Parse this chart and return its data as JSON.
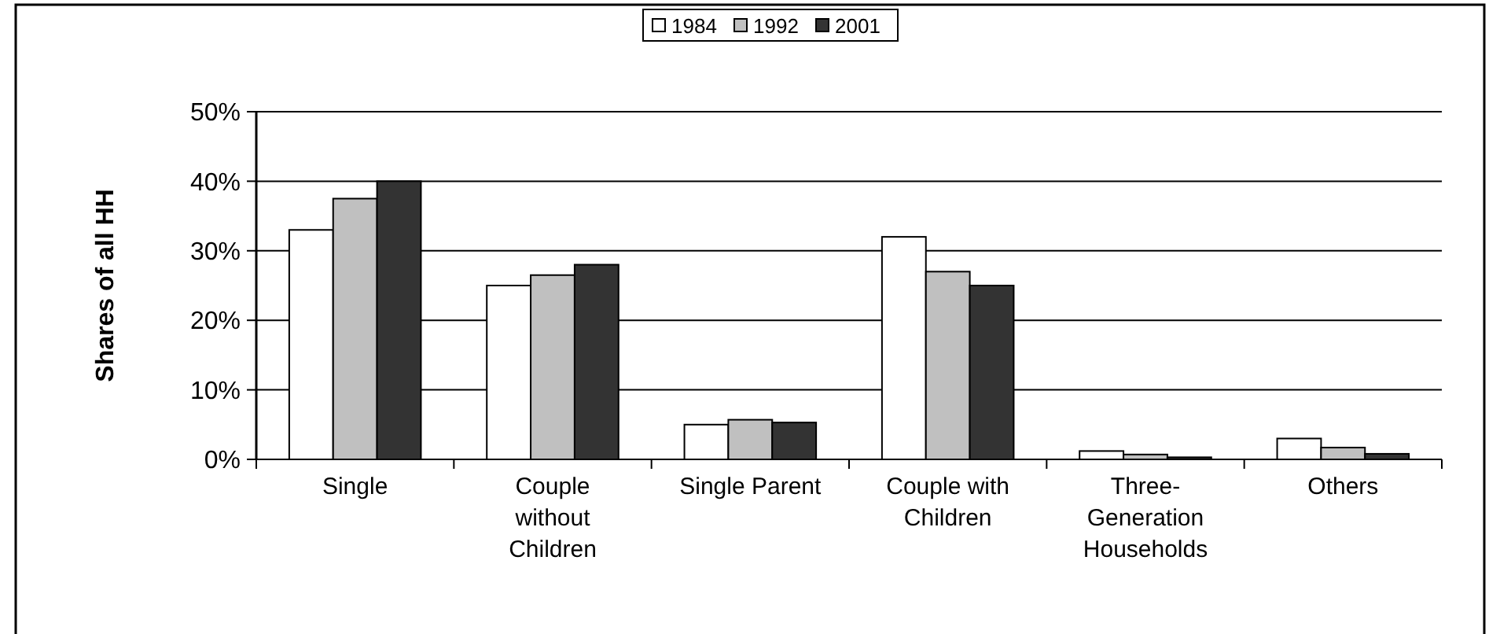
{
  "chart_data": {
    "type": "bar",
    "ylabel": "Shares of all HH",
    "categories": [
      "Single",
      "Couple without Children",
      "Single Parent",
      "Couple with Children",
      "Three-Generation Households",
      "Others"
    ],
    "series": [
      {
        "name": "1984",
        "color": "#ffffff",
        "values": [
          33,
          25,
          5,
          32,
          1.2,
          3
        ]
      },
      {
        "name": "1992",
        "color": "#c0c0c0",
        "values": [
          37.5,
          26.5,
          5.7,
          27,
          0.7,
          1.7
        ]
      },
      {
        "name": "2001",
        "color": "#333333",
        "values": [
          40,
          28,
          5.3,
          25,
          0.3,
          0.8
        ]
      }
    ],
    "ylim": [
      0,
      50
    ],
    "yticks": [
      {
        "value": 0,
        "label": "0%"
      },
      {
        "value": 10,
        "label": "10%"
      },
      {
        "value": 20,
        "label": "20%"
      },
      {
        "value": 30,
        "label": "30%"
      },
      {
        "value": 40,
        "label": "40%"
      },
      {
        "value": 50,
        "label": "50%"
      }
    ],
    "grid": "y",
    "legend": "top"
  }
}
